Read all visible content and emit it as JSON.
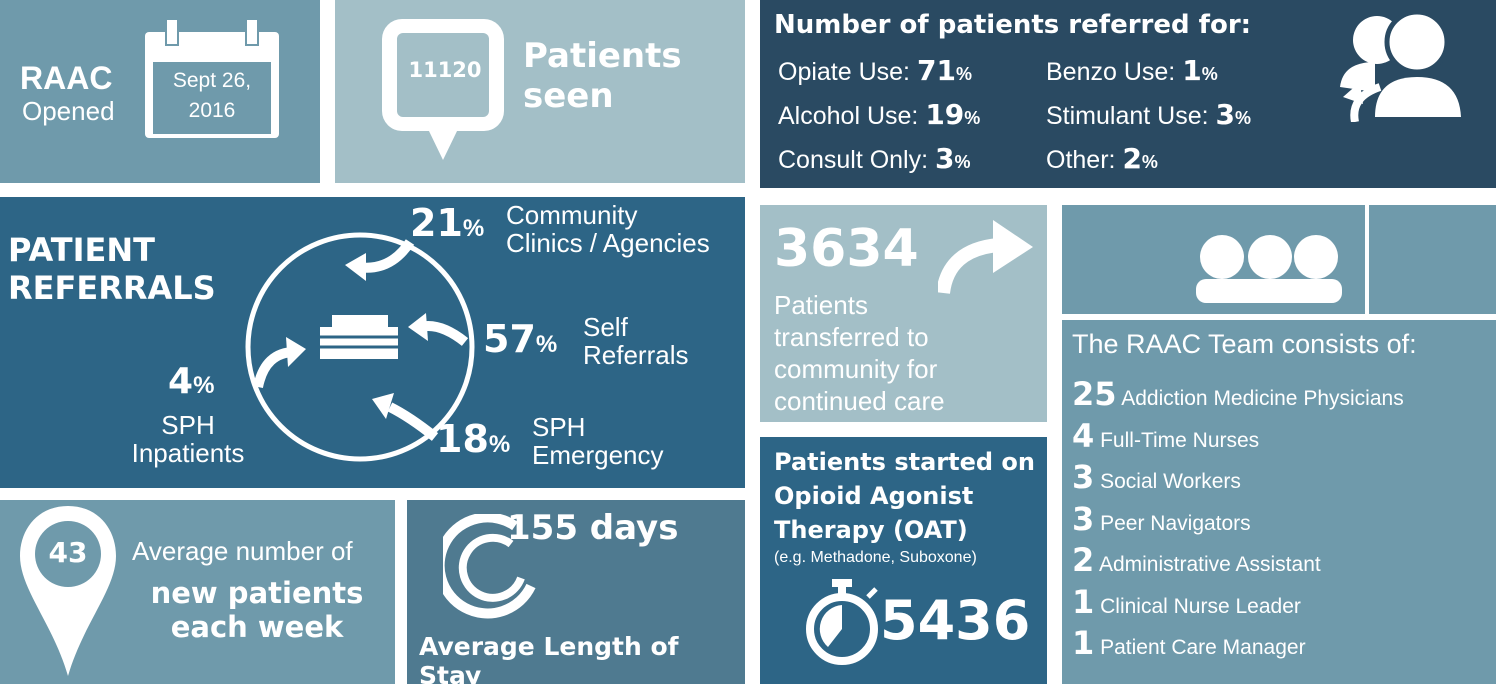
{
  "opened": {
    "title": "RAAC",
    "subtitle": "Opened",
    "date_line1": "Sept 26,",
    "date_line2": "2016"
  },
  "seen": {
    "value": "11120",
    "label_line1": "Patients",
    "label_line2": "seen"
  },
  "referred_for": {
    "title": "Number of patients referred for:",
    "items": [
      {
        "label": "Opiate Use:",
        "value": "71",
        "unit": "%"
      },
      {
        "label": "Benzo Use:",
        "value": "1",
        "unit": "%"
      },
      {
        "label": "Alcohol Use:",
        "value": "19",
        "unit": "%"
      },
      {
        "label": "Stimulant Use:",
        "value": "3",
        "unit": "%"
      },
      {
        "label": "Consult Only:",
        "value": "3",
        "unit": "%"
      },
      {
        "label": "Other:",
        "value": "2",
        "unit": "%"
      }
    ]
  },
  "referrals": {
    "title_line1": "PATIENT",
    "title_line2": "REFERRALS",
    "community": {
      "value": "21",
      "unit": "%",
      "line1": "Community",
      "line2": "Clinics / Agencies"
    },
    "self": {
      "value": "57",
      "unit": "%",
      "line1": "Self",
      "line2": "Referrals"
    },
    "emergency": {
      "value": "18",
      "unit": "%",
      "line1": "SPH",
      "line2": "Emergency"
    },
    "inpatients": {
      "value": "4",
      "unit": "%",
      "line1": "SPH",
      "line2": "Inpatients"
    }
  },
  "transferred": {
    "value": "3634",
    "lines": [
      "Patients",
      "transferred to",
      "community for",
      "continued care"
    ]
  },
  "team": {
    "title": "The RAAC Team consists of:",
    "members": [
      {
        "count": "25",
        "role": "Addiction Medicine Physicians"
      },
      {
        "count": "4",
        "role": "Full-Time Nurses"
      },
      {
        "count": "3",
        "role": "Social Workers"
      },
      {
        "count": "3",
        "role": "Peer Navigators"
      },
      {
        "count": "2",
        "role": "Administrative Assistant"
      },
      {
        "count": "1",
        "role": "Clinical Nurse Leader"
      },
      {
        "count": "1",
        "role": "Patient Care Manager"
      }
    ]
  },
  "weekly": {
    "value": "43",
    "line1": "Average number of",
    "line2": "new patients",
    "line3": "each week"
  },
  "stay": {
    "value": "155 days",
    "label": "Average Length of Stay"
  },
  "oat": {
    "line1": "Patients started on",
    "line2": "Opioid Agonist",
    "line3": "Therapy (OAT)",
    "note": "(e.g. Methadone, Suboxone)",
    "value": "5436"
  },
  "colors": {
    "mid": "#6f9aab",
    "light": "#a3bfc7",
    "dark": "#2a4a62",
    "blue": "#2d6586",
    "steel": "#4f7a90"
  }
}
